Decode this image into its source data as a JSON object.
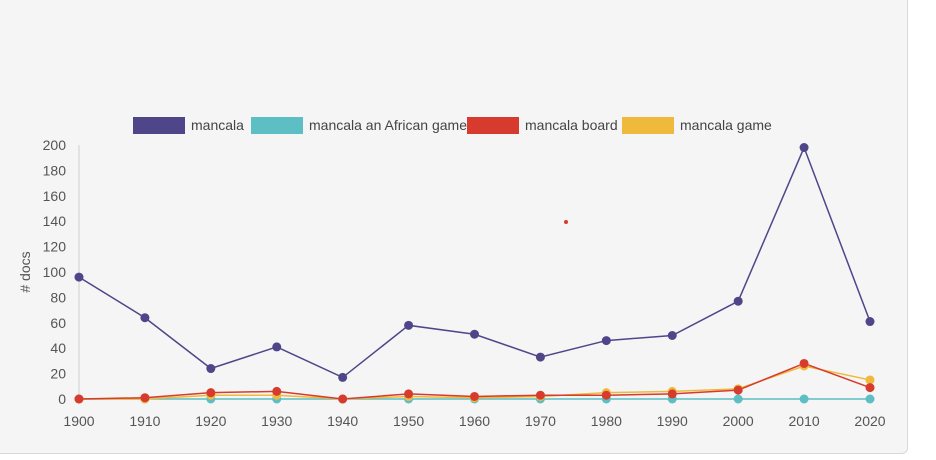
{
  "chart_data": {
    "type": "line",
    "title": "",
    "xlabel": "",
    "ylabel": "# docs",
    "x": [
      1900,
      1910,
      1920,
      1930,
      1940,
      1950,
      1960,
      1970,
      1980,
      1990,
      2000,
      2010,
      2020
    ],
    "ylim": [
      0,
      200
    ],
    "yticks": [
      0,
      20,
      40,
      60,
      80,
      100,
      120,
      140,
      160,
      180,
      200
    ],
    "grid": false,
    "legend_position": "top",
    "series": [
      {
        "name": "mancala",
        "color": "#4e4689",
        "values": [
          96,
          64,
          24,
          41,
          17,
          58,
          51,
          33,
          46,
          50,
          77,
          198,
          61
        ]
      },
      {
        "name": "mancala an African game",
        "color": "#5dbfc4",
        "values": [
          0,
          0,
          0,
          0,
          0,
          0,
          0,
          0,
          0,
          0,
          0,
          0,
          0
        ]
      },
      {
        "name": "mancala board",
        "color": "#d63b2d",
        "values": [
          0,
          1,
          5,
          6,
          0,
          4,
          2,
          3,
          3,
          4,
          7,
          28,
          9
        ]
      },
      {
        "name": "mancala game",
        "color": "#efb93b",
        "values": [
          0,
          0,
          3,
          3,
          0,
          2,
          1,
          2,
          5,
          6,
          8,
          26,
          15
        ]
      }
    ]
  }
}
